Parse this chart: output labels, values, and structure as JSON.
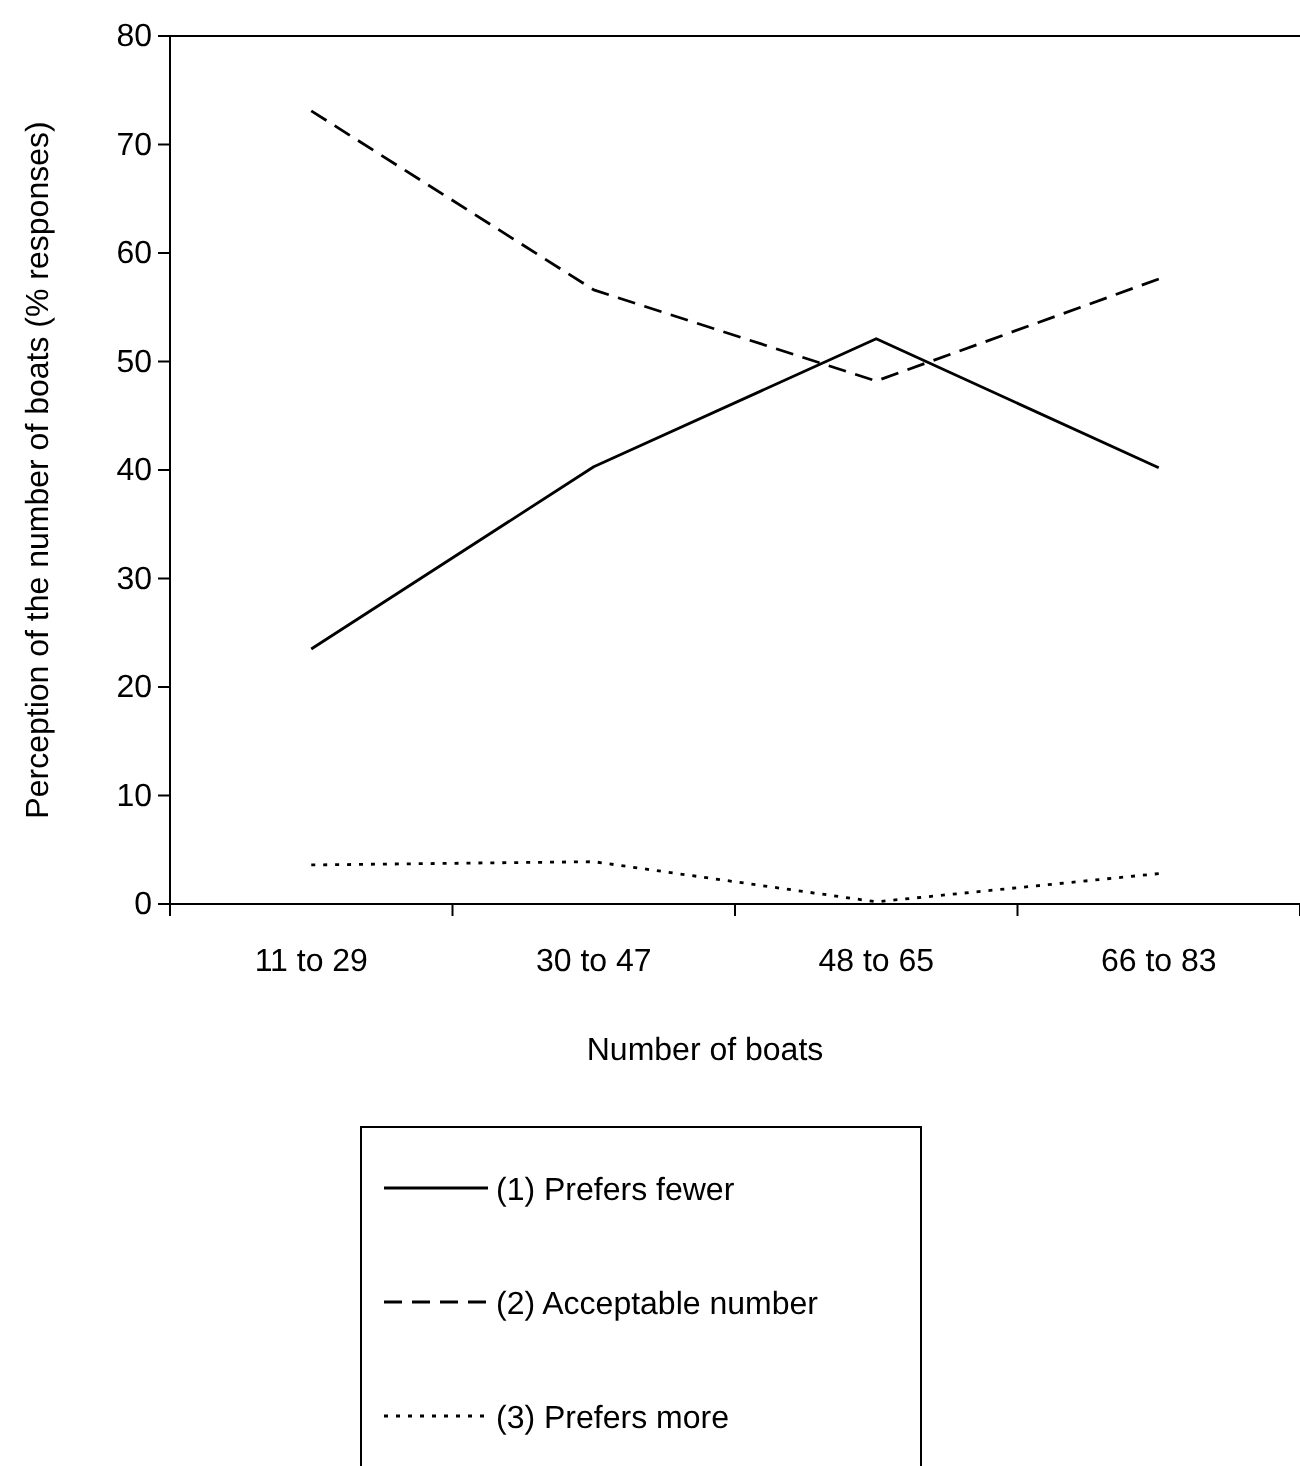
{
  "chart_data": {
    "type": "line",
    "xlabel": "Number of boats",
    "ylabel": "Perception of the number of boats (% responses)",
    "categories": [
      "11 to 29",
      "30 to 47",
      "48 to 65",
      "66 to 83"
    ],
    "series": [
      {
        "name": "(1) Prefers fewer",
        "color": "#000000",
        "line_style": "solid",
        "values": [
          23.5,
          40.3,
          52.1,
          40.2
        ]
      },
      {
        "name": "(2) Acceptable number",
        "color": "#000000",
        "line_style": "dashed",
        "values": [
          73.1,
          56.6,
          48.2,
          57.6
        ]
      },
      {
        "name": "(3) Prefers more",
        "color": "#000000",
        "line_style": "dotted",
        "values": [
          3.6,
          3.9,
          0.2,
          2.8
        ]
      }
    ],
    "ylim": [
      0,
      80
    ],
    "yticks": [
      0,
      10,
      20,
      30,
      40,
      50,
      60,
      70,
      80
    ],
    "grid": false,
    "legend": "bottom",
    "marker": "none"
  }
}
